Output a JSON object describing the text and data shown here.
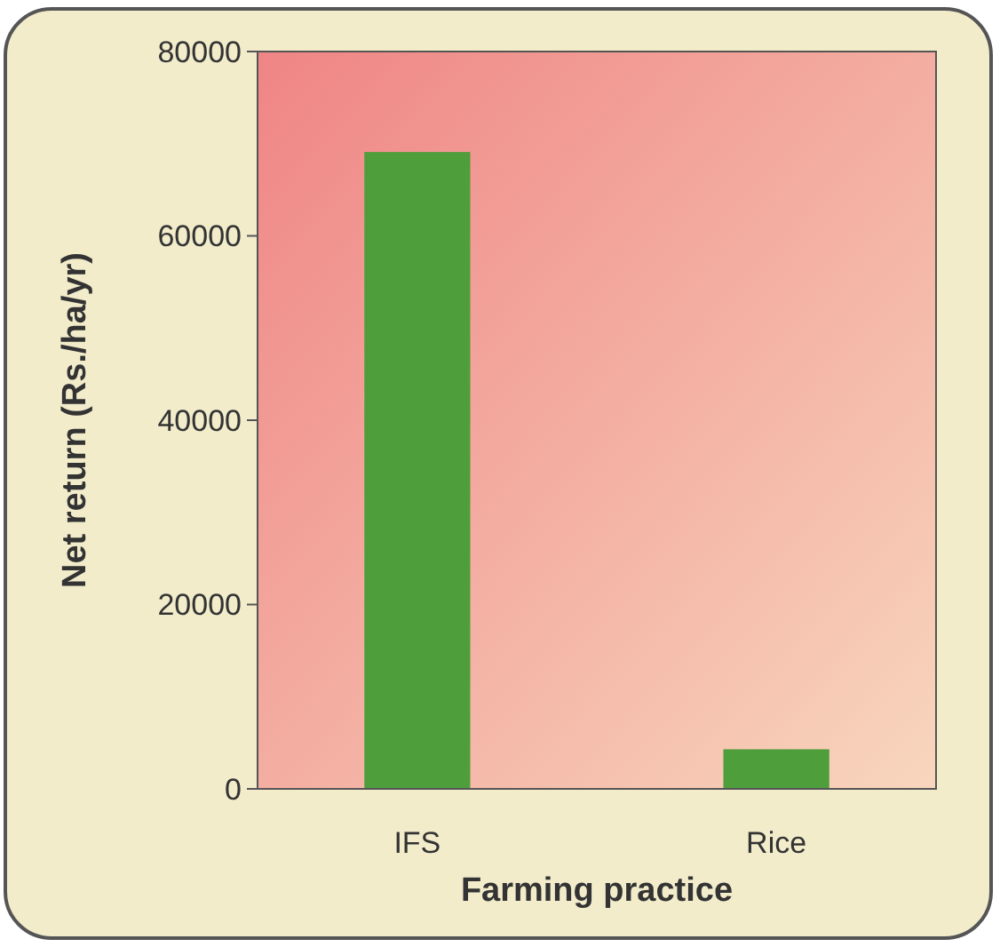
{
  "chart_data": {
    "type": "bar",
    "xlabel": "Farming practice",
    "ylabel": "Net return (Rs./ha/yr)",
    "categories": [
      "IFS",
      "Rice"
    ],
    "values": [
      69000,
      4200
    ],
    "color": "#4e9e3c",
    "ylim": [
      0,
      80000
    ],
    "yticks": [
      0,
      20000,
      40000,
      60000,
      80000
    ],
    "grid": false
  }
}
